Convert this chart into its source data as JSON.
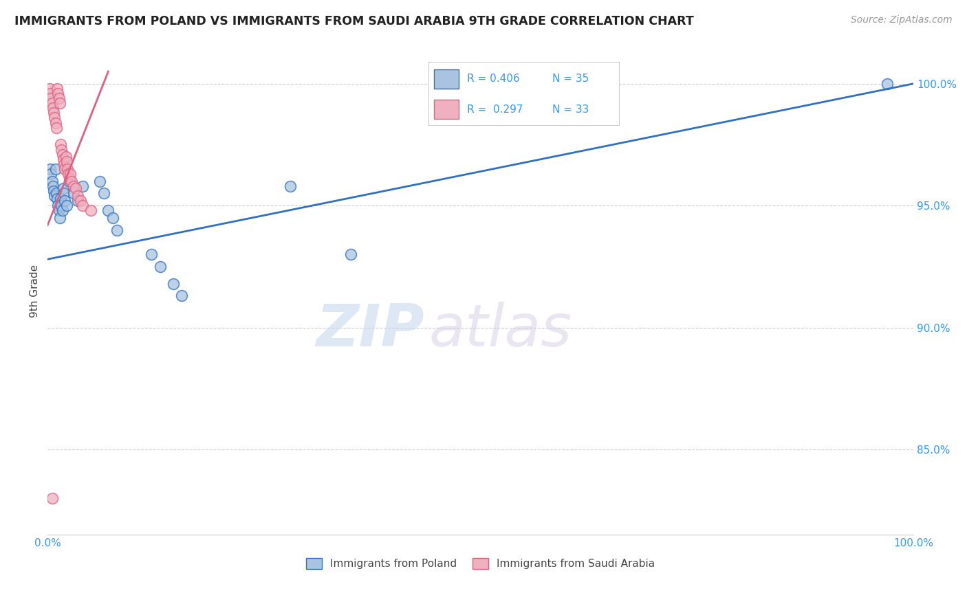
{
  "title": "IMMIGRANTS FROM POLAND VS IMMIGRANTS FROM SAUDI ARABIA 9TH GRADE CORRELATION CHART",
  "source": "Source: ZipAtlas.com",
  "legend_labels": [
    "Immigrants from Poland",
    "Immigrants from Saudi Arabia"
  ],
  "ylabel": "9th Grade",
  "blue_color": "#a8c4e0",
  "pink_color": "#f0b0c0",
  "blue_line_color": "#3070c0",
  "pink_line_color": "#e06080",
  "xlim": [
    0.0,
    1.0
  ],
  "ylim": [
    0.815,
    1.015
  ],
  "yticks": [
    0.85,
    0.9,
    0.95,
    1.0
  ],
  "ytick_labels": [
    "85.0%",
    "90.0%",
    "95.0%",
    "100.0%"
  ],
  "grid_color": "#cccccc",
  "background_color": "#ffffff",
  "watermark_zip": "ZIP",
  "watermark_atlas": "atlas",
  "poland_x": [
    0.003,
    0.004,
    0.005,
    0.006,
    0.007,
    0.008,
    0.009,
    0.01,
    0.011,
    0.012,
    0.013,
    0.014,
    0.015,
    0.016,
    0.017,
    0.018,
    0.019,
    0.02,
    0.022,
    0.025,
    0.03,
    0.035,
    0.04,
    0.06,
    0.065,
    0.07,
    0.075,
    0.08,
    0.12,
    0.13,
    0.145,
    0.155,
    0.28,
    0.35,
    0.97
  ],
  "poland_y": [
    0.965,
    0.963,
    0.96,
    0.958,
    0.956,
    0.954,
    0.965,
    0.955,
    0.953,
    0.95,
    0.948,
    0.945,
    0.953,
    0.95,
    0.948,
    0.957,
    0.955,
    0.952,
    0.95,
    0.96,
    0.955,
    0.952,
    0.958,
    0.96,
    0.955,
    0.948,
    0.945,
    0.94,
    0.93,
    0.925,
    0.918,
    0.913,
    0.958,
    0.93,
    1.0
  ],
  "saudi_x": [
    0.002,
    0.003,
    0.004,
    0.005,
    0.006,
    0.007,
    0.008,
    0.009,
    0.01,
    0.011,
    0.012,
    0.013,
    0.014,
    0.015,
    0.016,
    0.017,
    0.018,
    0.019,
    0.02,
    0.021,
    0.022,
    0.023,
    0.024,
    0.025,
    0.026,
    0.028,
    0.03,
    0.032,
    0.035,
    0.038,
    0.04,
    0.05,
    0.005
  ],
  "saudi_y": [
    0.998,
    0.996,
    0.994,
    0.992,
    0.99,
    0.988,
    0.986,
    0.984,
    0.982,
    0.998,
    0.996,
    0.994,
    0.992,
    0.975,
    0.973,
    0.971,
    0.969,
    0.967,
    0.965,
    0.97,
    0.968,
    0.965,
    0.963,
    0.961,
    0.963,
    0.96,
    0.958,
    0.957,
    0.954,
    0.952,
    0.95,
    0.948,
    0.83
  ],
  "blue_trendline_x": [
    0.0,
    1.0
  ],
  "blue_trendline_y": [
    0.928,
    1.0
  ],
  "pink_trendline_x": [
    0.0,
    0.07
  ],
  "pink_trendline_y": [
    0.942,
    1.005
  ]
}
